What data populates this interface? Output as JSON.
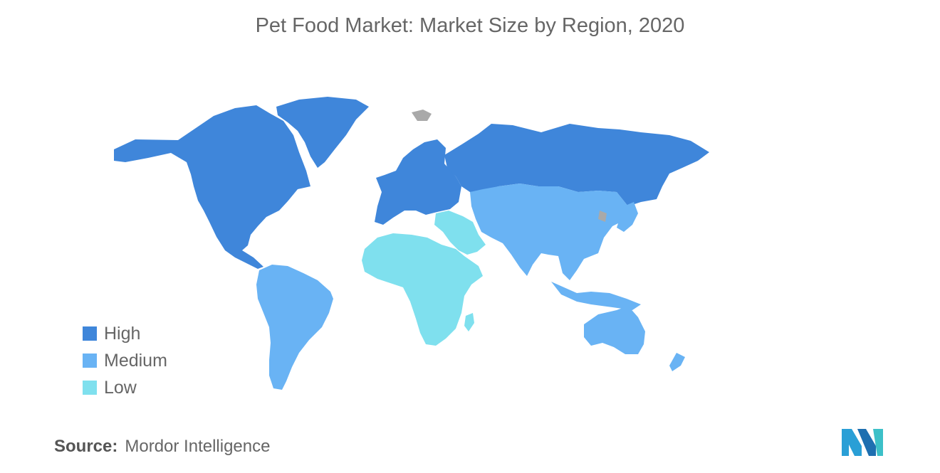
{
  "title": "Pet Food Market: Market Size by Region, 2020",
  "legend": [
    {
      "label": "High",
      "color": "#3f86da"
    },
    {
      "label": "Medium",
      "color": "#69b3f4"
    },
    {
      "label": "Low",
      "color": "#7fe0ee"
    }
  ],
  "no_data_color": "#a9a9a9",
  "regions": [
    {
      "name": "North America",
      "level": "High"
    },
    {
      "name": "Greenland",
      "level": "High"
    },
    {
      "name": "Europe",
      "level": "High"
    },
    {
      "name": "Russia",
      "level": "High"
    },
    {
      "name": "South America",
      "level": "Medium"
    },
    {
      "name": "Asia-Pacific",
      "level": "Medium"
    },
    {
      "name": "Australia",
      "level": "Medium"
    },
    {
      "name": "Africa",
      "level": "Low"
    },
    {
      "name": "Middle East",
      "level": "Low"
    }
  ],
  "source": {
    "label": "Source:",
    "value": "Mordor Intelligence"
  },
  "logo": {
    "icon": "mordor-intelligence-logo-icon"
  }
}
